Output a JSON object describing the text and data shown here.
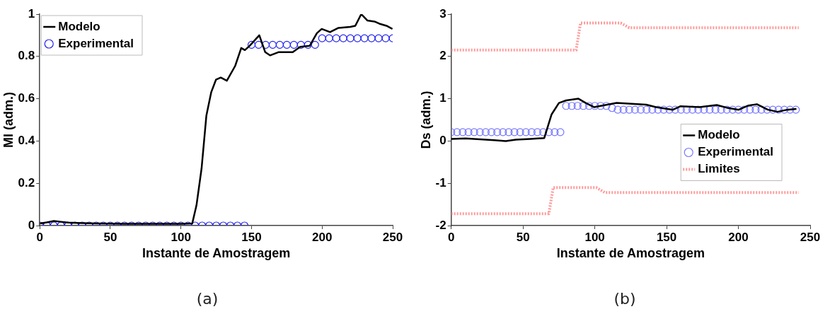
{
  "chart_data": [
    {
      "type": "line",
      "xlabel": "Instante de Amostragem",
      "ylabel": "MI (adm.)",
      "xlim": [
        0,
        250
      ],
      "xticks": [
        0,
        50,
        100,
        150,
        200,
        250
      ],
      "ylim": [
        0,
        1
      ],
      "yticks": [
        0,
        0.2,
        0.4,
        0.6,
        0.8,
        1
      ],
      "grid": false,
      "legend": "top left",
      "annotations": [
        "(a)"
      ],
      "series": [
        {
          "name": "Modelo",
          "color": "#000000",
          "marker": "none",
          "line_style": "solid",
          "x": [
            0,
            5,
            10,
            15,
            20,
            30,
            40,
            60,
            80,
            100,
            108,
            111,
            114.6,
            118,
            121.4,
            124.8,
            128.2,
            132.5,
            138.4,
            142.7,
            145.3,
            148.6,
            155.5,
            159.7,
            163.1,
            169,
            179.2,
            184.4,
            191.2,
            196.3,
            199.7,
            205.6,
            211.6,
            220,
            223.5,
            227.7,
            232,
            237.1,
            240.5,
            245.6,
            249.8
          ],
          "values": [
            0.01,
            0.015,
            0.022,
            0.018,
            0.014,
            0.012,
            0.01,
            0.008,
            0.008,
            0.008,
            0.01,
            0.096,
            0.27,
            0.52,
            0.63,
            0.69,
            0.7,
            0.685,
            0.755,
            0.84,
            0.83,
            0.85,
            0.9,
            0.82,
            0.805,
            0.82,
            0.82,
            0.845,
            0.85,
            0.91,
            0.93,
            0.915,
            0.935,
            0.94,
            0.945,
            1.0,
            0.97,
            0.965,
            0.955,
            0.945,
            0.93
          ]
        },
        {
          "name": "Experimental",
          "type": "scatter",
          "color": "#2222ee",
          "marker": "circle",
          "x": [
            0,
            5,
            10,
            15,
            20,
            25,
            30,
            35,
            40,
            45,
            50,
            55,
            60,
            65,
            70,
            75,
            80,
            85,
            90,
            95,
            100,
            105,
            110,
            115,
            120,
            125,
            130,
            135,
            140,
            145,
            150,
            155,
            160,
            165,
            170,
            175,
            180,
            185,
            190,
            195,
            200,
            205,
            210,
            215,
            220,
            225,
            230,
            235,
            240,
            245,
            250
          ],
          "values": [
            0,
            0,
            0,
            0,
            0,
            0,
            0,
            0,
            0,
            0,
            0,
            0,
            0,
            0,
            0,
            0,
            0,
            0,
            0,
            0,
            0,
            0,
            0,
            0,
            0,
            0,
            0,
            0,
            0,
            0,
            0.855,
            0.855,
            0.855,
            0.855,
            0.855,
            0.855,
            0.855,
            0.855,
            0.855,
            0.855,
            0.886,
            0.886,
            0.886,
            0.886,
            0.886,
            0.886,
            0.886,
            0.886,
            0.886,
            0.886,
            0.886
          ]
        }
      ]
    },
    {
      "type": "line",
      "xlabel": "Instante de Amostragem",
      "ylabel": "Ds (adm.)",
      "xlim": [
        0,
        250
      ],
      "xticks": [
        0,
        50,
        100,
        150,
        200,
        250
      ],
      "ylim": [
        -2,
        3
      ],
      "yticks": [
        -2,
        -1,
        0,
        1,
        2,
        3
      ],
      "grid": false,
      "legend": "right",
      "annotations": [
        "(b)"
      ],
      "series": [
        {
          "name": "Modelo",
          "color": "#000000",
          "marker": "none",
          "line_style": "solid",
          "x": [
            0,
            10,
            20,
            30,
            38,
            45,
            55,
            64.8,
            69.9,
            75,
            80,
            88.6,
            93.7,
            99.6,
            107.3,
            115.2,
            135.8,
            142.6,
            154.4,
            159.5,
            173,
            184.9,
            191.7,
            200.2,
            207,
            212.9,
            220.5,
            227.3,
            234,
            240.4
          ],
          "values": [
            0.05,
            0.06,
            0.04,
            0.02,
            0,
            0.03,
            0.05,
            0.07,
            0.63,
            0.9,
            0.96,
            1.0,
            0.9,
            0.8,
            0.85,
            0.9,
            0.86,
            0.8,
            0.74,
            0.82,
            0.8,
            0.85,
            0.79,
            0.74,
            0.84,
            0.87,
            0.74,
            0.69,
            0.74,
            0.76
          ]
        },
        {
          "name": "Experimental",
          "type": "scatter",
          "color": "#7777ff",
          "marker": "circle",
          "x": [
            0,
            4,
            8,
            12,
            16,
            20,
            24,
            28,
            32,
            36,
            40,
            44,
            48,
            52,
            56,
            60,
            64,
            68,
            72,
            76,
            80,
            84,
            88,
            92,
            96,
            100,
            104,
            108,
            112,
            116,
            120,
            124,
            128,
            132,
            136,
            140,
            144,
            148,
            152,
            156,
            160,
            164,
            168,
            172,
            176,
            180,
            184,
            188,
            192,
            196,
            200,
            204,
            208,
            212,
            216,
            220,
            224,
            228,
            232,
            236,
            240
          ],
          "values": [
            0.21,
            0.21,
            0.21,
            0.21,
            0.21,
            0.21,
            0.21,
            0.21,
            0.21,
            0.21,
            0.21,
            0.21,
            0.21,
            0.21,
            0.21,
            0.21,
            0.21,
            0.21,
            0.21,
            0.21,
            0.83,
            0.83,
            0.83,
            0.83,
            0.83,
            0.83,
            0.83,
            0.83,
            0.78,
            0.74,
            0.74,
            0.74,
            0.74,
            0.74,
            0.74,
            0.74,
            0.74,
            0.74,
            0.74,
            0.74,
            0.74,
            0.74,
            0.74,
            0.74,
            0.74,
            0.74,
            0.74,
            0.74,
            0.74,
            0.74,
            0.74,
            0.74,
            0.74,
            0.74,
            0.74,
            0.74,
            0.74,
            0.74,
            0.74,
            0.74,
            0.74
          ]
        },
        {
          "name": "Limites",
          "color": "#ff9a9a",
          "marker": "none",
          "line_style": "dotted",
          "x": [
            0,
            87,
            90,
            118,
            124,
            242
          ],
          "values": [
            2.15,
            2.15,
            2.79,
            2.79,
            2.68,
            2.68
          ]
        },
        {
          "color": "#ff9a9a",
          "marker": "none",
          "line_style": "dotted",
          "x": [
            0,
            68,
            71,
            101,
            107,
            242
          ],
          "values": [
            -1.72,
            -1.72,
            -1.1,
            -1.1,
            -1.22,
            -1.22
          ]
        }
      ]
    }
  ]
}
